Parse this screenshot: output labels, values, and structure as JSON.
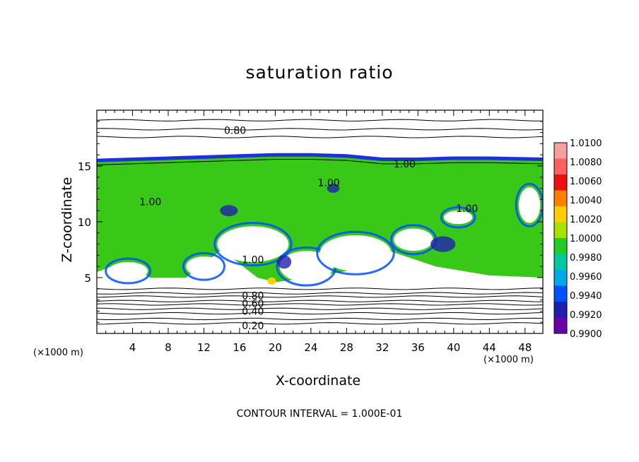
{
  "chart_data": {
    "type": "heatmap",
    "title": "saturation ratio",
    "xlabel": "X-coordinate",
    "ylabel": "Z-coordinate",
    "x_unit_left": "(×1000 m)",
    "x_unit_right": "(×1000 m)",
    "xlim": [
      0,
      50
    ],
    "ylim": [
      0,
      20
    ],
    "x_ticks": [
      4,
      8,
      12,
      16,
      20,
      24,
      28,
      32,
      36,
      40,
      44,
      48
    ],
    "y_ticks": [
      5,
      10,
      15
    ],
    "colorbar": {
      "levels": [
        "1.0100",
        "1.0080",
        "1.0060",
        "1.0040",
        "1.0020",
        "1.0000",
        "0.9980",
        "0.9960",
        "0.9940",
        "0.9920",
        "0.9900"
      ],
      "colors": [
        "#f4a0a0",
        "#ff6060",
        "#ee1010",
        "#ff7f00",
        "#ffcc00",
        "#a8e000",
        "#22cc22",
        "#00c8a0",
        "#00a8e8",
        "#0050ff",
        "#2020b0",
        "#6a00a8"
      ]
    },
    "cloud_field": {
      "top_z": [
        15.5,
        15.6,
        15.7,
        15.8,
        15.9,
        16.0,
        16.0,
        15.9,
        15.6,
        15.6,
        15.7,
        15.7,
        15.6
      ],
      "top_x": [
        0,
        4,
        8,
        12,
        16,
        20,
        24,
        28,
        32,
        36,
        40,
        44,
        50
      ],
      "base_z": [
        5.5,
        6.4,
        5.0,
        5.0,
        7.5,
        5.0,
        4.6,
        5.0,
        5.6,
        7.6,
        6.0,
        5.2,
        5.0
      ],
      "base_x": [
        0,
        3,
        6,
        10,
        14,
        18,
        20,
        24,
        28,
        32,
        38,
        44,
        50
      ]
    },
    "contours": [
      {
        "label": "0.80",
        "x": 15.5,
        "z": 18.2
      },
      {
        "label": "1.00",
        "x": 34.5,
        "z": 15.2
      },
      {
        "label": "1.00",
        "x": 26.0,
        "z": 13.5
      },
      {
        "label": "1.00",
        "x": 6.0,
        "z": 11.8
      },
      {
        "label": "1.00",
        "x": 41.5,
        "z": 11.2
      },
      {
        "label": "1.00",
        "x": 17.5,
        "z": 6.6
      },
      {
        "label": "0.80",
        "x": 17.5,
        "z": 3.4
      },
      {
        "label": "0.60",
        "x": 17.5,
        "z": 2.7
      },
      {
        "label": "0.40",
        "x": 17.5,
        "z": 2.0
      },
      {
        "label": "0.20",
        "x": 17.5,
        "z": 0.7
      }
    ],
    "contour_lines_z": [
      19.1,
      18.3,
      17.6,
      4.0,
      3.6,
      3.3,
      2.9,
      2.6,
      2.2,
      1.8,
      1.3,
      0.9
    ]
  },
  "annotation": "CONTOUR INTERVAL = 1.000E-01"
}
